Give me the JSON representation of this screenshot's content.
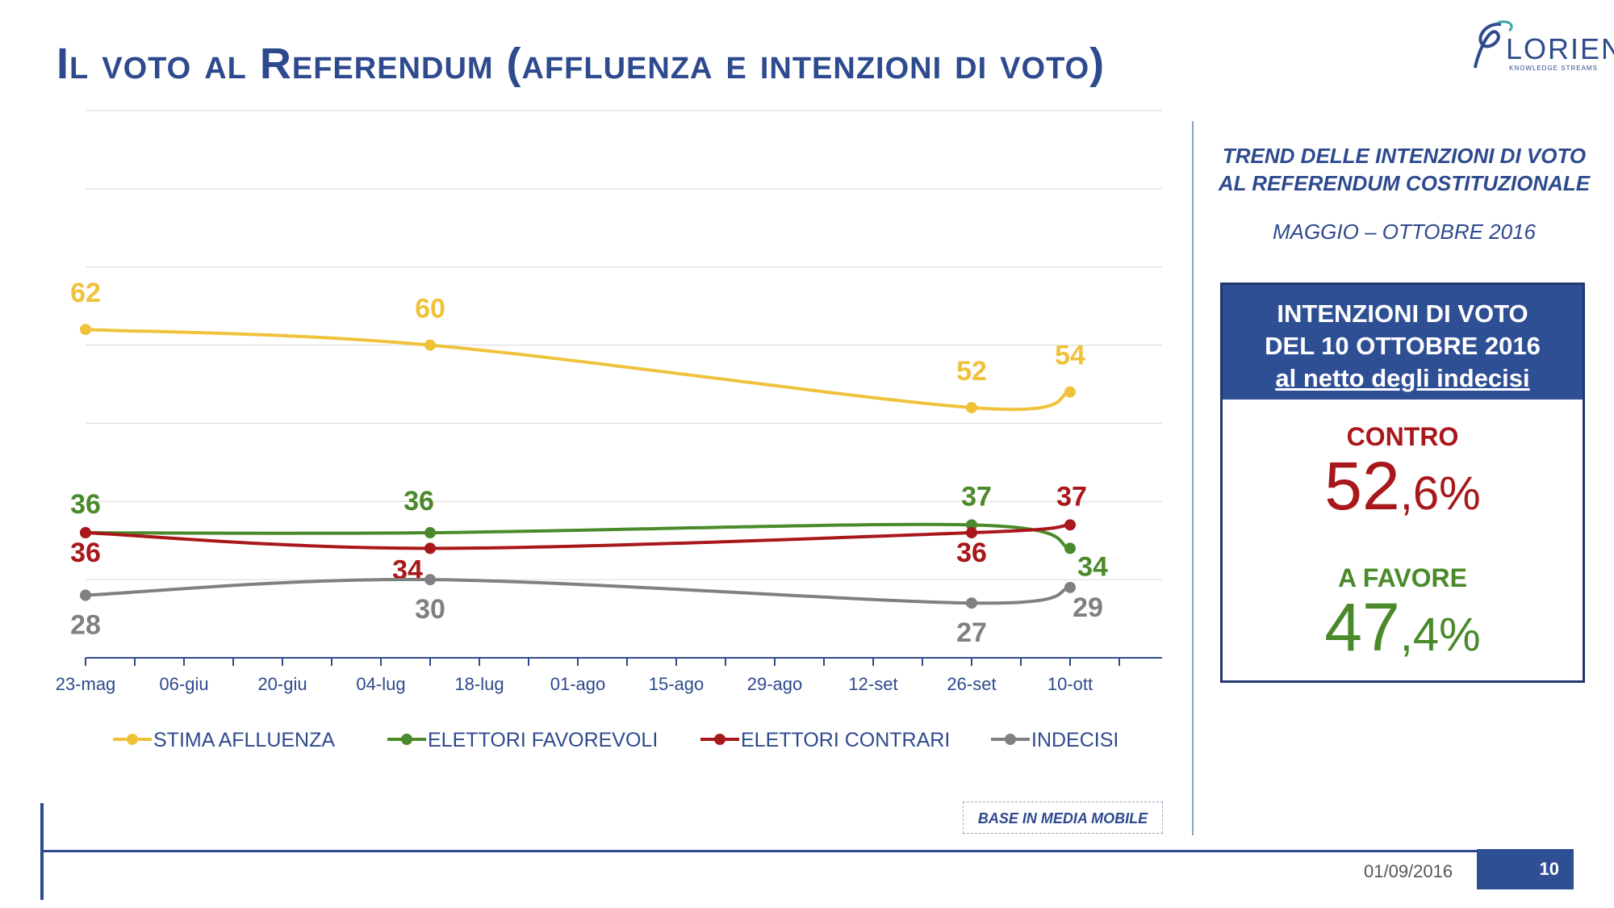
{
  "title": "Il voto al Referendum (affluenza e intenzioni di voto)",
  "logo": {
    "name": "LORIEN",
    "tagline": "KNOWLEDGE STREAMS"
  },
  "right_panel": {
    "heading_line1": "TREND DELLE INTENZIONI DI VOTO",
    "heading_line2": "AL REFERENDUM COSTITUZIONALE",
    "period": "MAGGIO – OTTOBRE 2016",
    "box": {
      "head_line1": "INTENZIONI DI VOTO",
      "head_line2": "DEL 10 OTTOBRE 2016",
      "head_line3": "al netto degli indecisi",
      "contro_label": "CONTRO",
      "contro_int": "52",
      "contro_dec": ",6%",
      "favore_label": "A FAVORE",
      "favore_int": "47",
      "favore_dec": ",4%"
    }
  },
  "note": "BASE IN MEDIA MOBILE",
  "footer": {
    "date": "01/09/2016",
    "page": "10"
  },
  "colors": {
    "brand": "#2e4a8e",
    "affluenza": "#f0c23b",
    "favorevoli": "#4a8a2a",
    "contrari": "#a8171a",
    "indecisi": "#808080"
  },
  "chart_data": {
    "type": "line",
    "x_ticks": [
      "23-mag",
      "06-giu",
      "20-giu",
      "04-lug",
      "18-lug",
      "01-ago",
      "15-ago",
      "29-ago",
      "12-set",
      "26-set",
      "10-ott"
    ],
    "x_points": [
      "23-mag",
      "11-lug",
      "26-set",
      "10-ott"
    ],
    "ylim": [
      20,
      90
    ],
    "grid": true,
    "legend_position": "bottom",
    "series": [
      {
        "name": "STIMA AFLLUENZA",
        "color": "#f0c23b",
        "values": [
          62,
          60,
          52,
          54
        ]
      },
      {
        "name": "ELETTORI FAVOREVOLI",
        "color": "#4a8a2a",
        "values": [
          36,
          36,
          37,
          34
        ]
      },
      {
        "name": "ELETTORI CONTRARI",
        "color": "#a8171a",
        "values": [
          36,
          34,
          36,
          37
        ]
      },
      {
        "name": "INDECISI",
        "color": "#808080",
        "values": [
          28,
          30,
          27,
          29
        ]
      }
    ]
  }
}
